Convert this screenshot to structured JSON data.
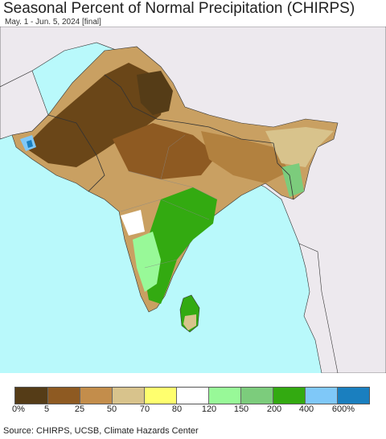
{
  "header": {
    "title": "Seasonal Percent of Normal Precipitation (CHIRPS)",
    "subtitle": "May. 1 - Jun. 5, 2024 [final]"
  },
  "colors": {
    "ocean": "#b9f9fb",
    "outside_land": "#ede9ee",
    "border": "#333333"
  },
  "legend": {
    "classes": [
      {
        "color": "#553c17"
      },
      {
        "color": "#8e5a22"
      },
      {
        "color": "#c38d4b"
      },
      {
        "color": "#d8c38c"
      },
      {
        "color": "#ffff6e"
      },
      {
        "color": "#ffffff"
      },
      {
        "color": "#98f998"
      },
      {
        "color": "#7ccc7c"
      },
      {
        "color": "#33aa11"
      },
      {
        "color": "#7fc8f8"
      },
      {
        "color": "#1a7fbf"
      }
    ],
    "labels": [
      "0%",
      "5",
      "25",
      "50",
      "70",
      "80",
      "120",
      "150",
      "200",
      "400",
      "600%"
    ]
  },
  "footer": {
    "source": "Source: CHIRPS, UCSB, Climate Hazards Center"
  }
}
